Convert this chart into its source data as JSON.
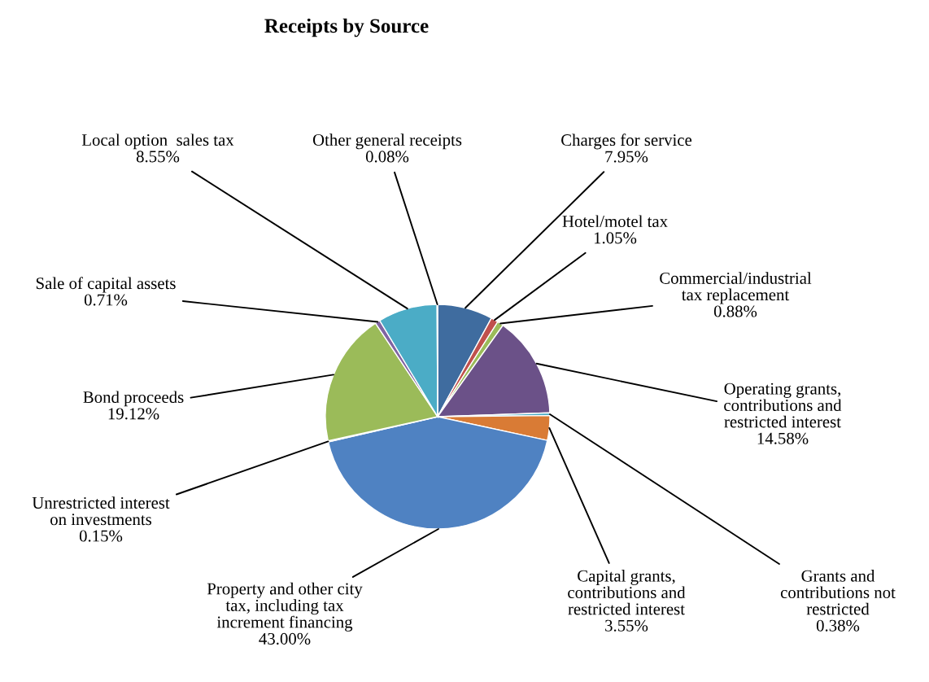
{
  "chart_data": {
    "type": "pie",
    "title": "Receipts by Source",
    "categories": [
      "Charges for service",
      "Hotel/motel tax",
      "Commercial/industrial\ntax replacement",
      "Operating grants,\ncontributions and\nrestricted interest",
      "Grants and\ncontributions not\nrestricted",
      "Capital grants,\ncontributions and\nrestricted interest",
      "Property and other city\ntax, including tax\nincrement financing",
      "Unrestricted interest\non investments",
      "Bond proceeds",
      "Sale of capital assets",
      "Local option  sales tax",
      "Other general receipts"
    ],
    "values": [
      7.95,
      1.05,
      0.88,
      14.58,
      0.38,
      3.55,
      43.0,
      0.15,
      19.12,
      0.71,
      8.55,
      0.08
    ],
    "value_labels": [
      "7.95%",
      "1.05%",
      "0.88%",
      "14.58%",
      "0.38%",
      "3.55%",
      "43.00%",
      "0.15%",
      "19.12%",
      "0.71%",
      "8.55%",
      "0.08%"
    ],
    "colors": [
      "#3f6c9f",
      "#c0504d",
      "#9bbb59",
      "#6b5188",
      "#4bacc6",
      "#d97b35",
      "#4f82c2",
      "#c0504d",
      "#9bbb59",
      "#8064a2",
      "#4bacc6",
      "#f79646"
    ],
    "legend": false
  }
}
